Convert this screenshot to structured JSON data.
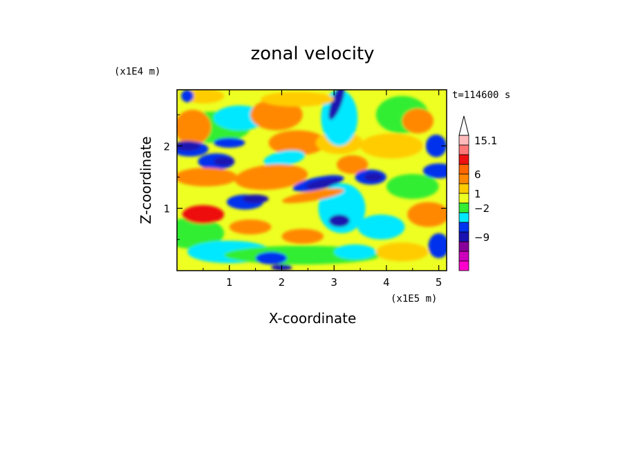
{
  "chart_data": {
    "type": "heatmap",
    "title": "zonal velocity",
    "xlabel": "X-coordinate",
    "ylabel": "Z-coordinate",
    "x_unit_label": "(x1E5 m)",
    "y_unit_label": "(x1E4 m)",
    "time_label": "t=114600 s",
    "xlim": [
      0,
      5.15
    ],
    "ylim": [
      0,
      2.9
    ],
    "x_ticks": [
      1,
      2,
      3,
      4,
      5
    ],
    "x_tick_labels": [
      "1",
      "2",
      "3",
      "4",
      "5"
    ],
    "y_ticks": [
      1,
      2
    ],
    "y_tick_labels": [
      "1",
      "2"
    ],
    "colorbar": {
      "levels": [
        {
          "color": "#ff00cc"
        },
        {
          "color": "#cc00bb"
        },
        {
          "color": "#880099"
        },
        {
          "color": "#1a12b0"
        },
        {
          "color": "#0033ee"
        },
        {
          "color": "#00e8ff"
        },
        {
          "color": "#33ee33"
        },
        {
          "color": "#eeff22"
        },
        {
          "color": "#ffcc00"
        },
        {
          "color": "#ff8800"
        },
        {
          "color": "#ff6600"
        },
        {
          "color": "#ee1111"
        },
        {
          "color": "#ff7777"
        },
        {
          "color": "#ffbbbb"
        }
      ],
      "labels": [
        "15.1",
        "6",
        "1",
        "−2",
        "−9"
      ],
      "extend": "max"
    },
    "palette": {
      "dark_blue": "#1a12b0",
      "blue": "#0033ee",
      "cyan": "#00e8ff",
      "green": "#33ee33",
      "yellow": "#eeff22",
      "gold": "#ffcc00",
      "orange": "#ff8800",
      "red": "#ee1111"
    }
  }
}
